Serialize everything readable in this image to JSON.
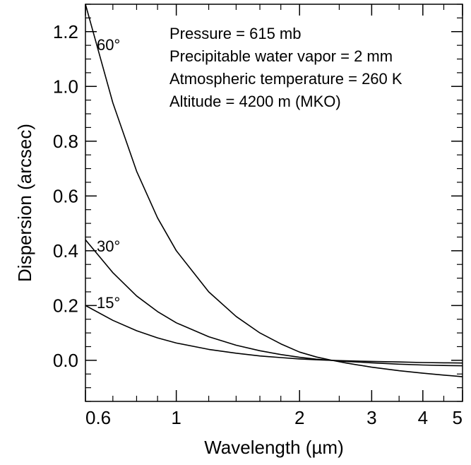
{
  "chart_data": {
    "type": "line",
    "xlabel": "Wavelength (µm)",
    "ylabel": "Dispersion (arcsec)",
    "xscale": "log",
    "xlim": [
      0.6,
      5
    ],
    "ylim": [
      -0.15,
      1.3
    ],
    "xticks": [
      {
        "value": 0.6,
        "label": "0.6"
      },
      {
        "value": 1,
        "label": "1"
      },
      {
        "value": 2,
        "label": "2"
      },
      {
        "value": 3,
        "label": "3"
      },
      {
        "value": 4,
        "label": "4"
      },
      {
        "value": 5,
        "label": "5"
      }
    ],
    "yticks": [
      {
        "value": 0.0,
        "label": "0.0"
      },
      {
        "value": 0.2,
        "label": "0.2"
      },
      {
        "value": 0.4,
        "label": "0.4"
      },
      {
        "value": 0.6,
        "label": "0.6"
      },
      {
        "value": 0.8,
        "label": "0.8"
      },
      {
        "value": 1.0,
        "label": "1.0"
      },
      {
        "value": 1.2,
        "label": "1.2"
      }
    ],
    "grid": false,
    "annotations": [
      "Pressure = 615 mb",
      "Precipitable water vapor = 2 mm",
      "Atmospheric temperature = 260 K",
      "Altitude = 4200 m (MKO)"
    ],
    "series": [
      {
        "name": "60°",
        "color": "#000000",
        "x": [
          0.6,
          0.7,
          0.8,
          0.9,
          1.0,
          1.2,
          1.4,
          1.6,
          1.8,
          2.0,
          2.2,
          2.4,
          2.6,
          3.0,
          3.5,
          4.0,
          4.5,
          5.0
        ],
        "y": [
          1.3,
          0.94,
          0.69,
          0.52,
          0.4,
          0.25,
          0.16,
          0.1,
          0.06,
          0.03,
          0.012,
          0.0,
          -0.01,
          -0.025,
          -0.038,
          -0.047,
          -0.054,
          -0.06
        ]
      },
      {
        "name": "30°",
        "color": "#000000",
        "x": [
          0.6,
          0.7,
          0.8,
          0.9,
          1.0,
          1.2,
          1.4,
          1.6,
          1.8,
          2.0,
          2.2,
          2.4,
          2.6,
          3.0,
          3.5,
          4.0,
          4.5,
          5.0
        ],
        "y": [
          0.44,
          0.32,
          0.235,
          0.178,
          0.137,
          0.086,
          0.055,
          0.035,
          0.021,
          0.011,
          0.004,
          0.0,
          -0.004,
          -0.009,
          -0.014,
          -0.017,
          -0.019,
          -0.02
        ]
      },
      {
        "name": "15°",
        "color": "#000000",
        "x": [
          0.6,
          0.7,
          0.8,
          0.9,
          1.0,
          1.2,
          1.4,
          1.6,
          1.8,
          2.0,
          2.2,
          2.4,
          2.6,
          3.0,
          3.5,
          4.0,
          4.5,
          5.0
        ],
        "y": [
          0.2,
          0.146,
          0.108,
          0.082,
          0.063,
          0.04,
          0.026,
          0.016,
          0.01,
          0.005,
          0.002,
          0.0,
          -0.002,
          -0.004,
          -0.006,
          -0.008,
          -0.009,
          -0.01
        ]
      }
    ]
  }
}
